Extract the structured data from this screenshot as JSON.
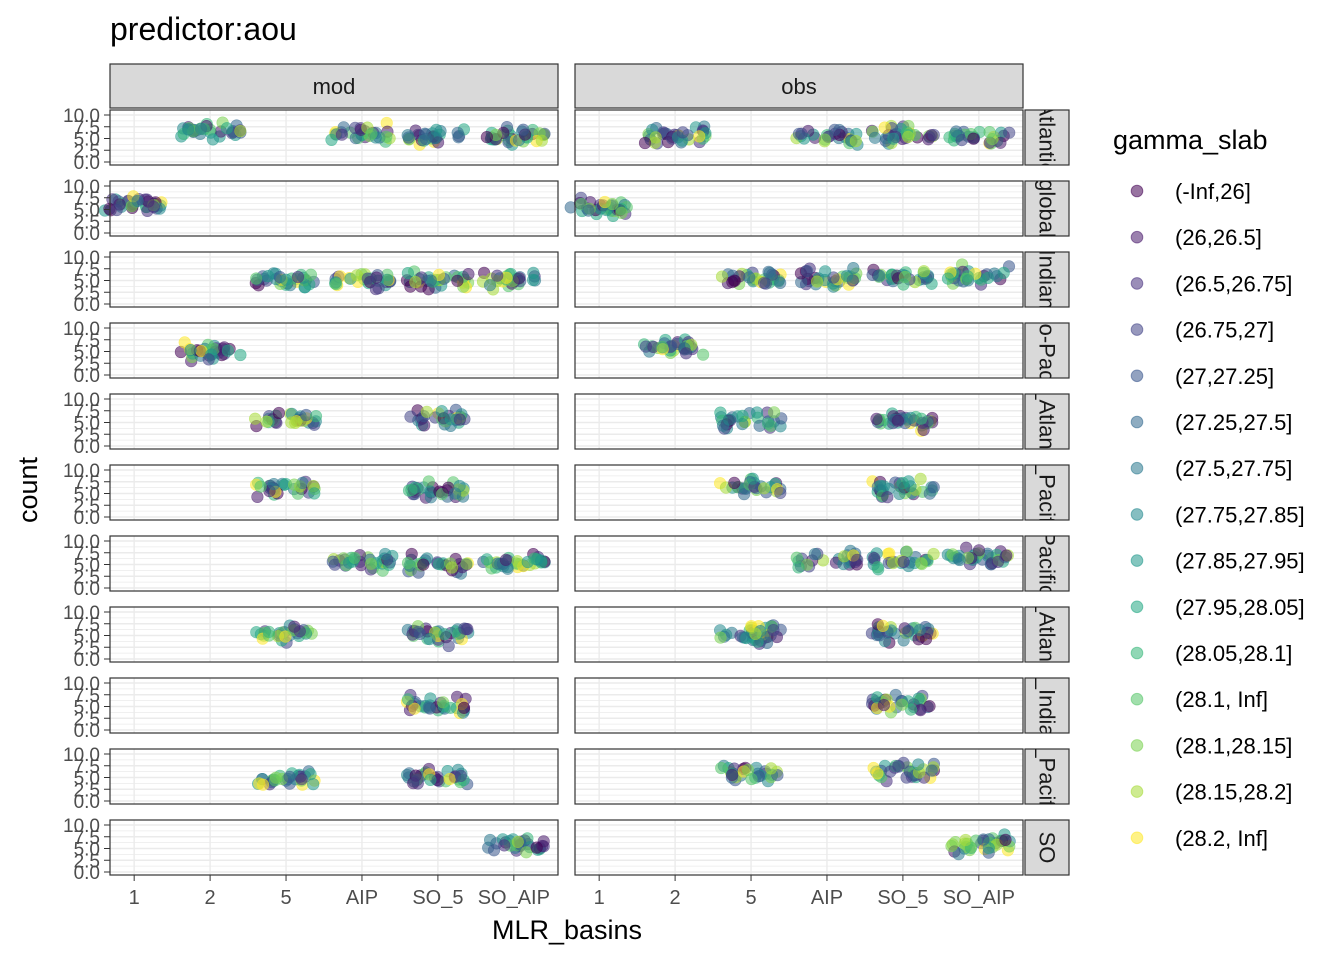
{
  "chart_data": {
    "type": "scatter",
    "title": "predictor:aou",
    "xlabel": "MLR_basins",
    "ylabel": "count",
    "x_categories": [
      "1",
      "2",
      "5",
      "AIP",
      "SO_5",
      "SO_AIP"
    ],
    "y_ticks": [
      "0.0",
      "2.5",
      "5.0",
      "7.5",
      "10.0"
    ],
    "ylim": [
      0,
      10
    ],
    "facet_columns": [
      "mod",
      "obs"
    ],
    "facet_rows": [
      "Atlantic",
      "global",
      "Indian",
      "Indo-Pacific",
      "N_Atlantic",
      "N_Pacific",
      "Pacific",
      "S_Atlantic",
      "S_Indian",
      "S_Pacific",
      "SO"
    ],
    "grid": true,
    "legend": {
      "title": "gamma_slab",
      "placement": "right",
      "entries": [
        "(-Inf,26]",
        "(26,26.5]",
        "(26.5,26.75]",
        "(26.75,27]",
        "(27,27.25]",
        "(27.25,27.5]",
        "(27.5,27.75]",
        "(27.75,27.85]",
        "(27.85,27.95]",
        "(27.95,28.05]",
        "(28.05,28.1]",
        "(28.1, Inf]",
        "(28.1,28.15]",
        "(28.15,28.2]",
        "(28.2, Inf]"
      ],
      "colors": [
        "#440154",
        "#481A6C",
        "#472F7D",
        "#414487",
        "#39568C",
        "#31688E",
        "#2A788E",
        "#23888E",
        "#1F988B",
        "#22A884",
        "#35B779",
        "#54C568",
        "#7AD151",
        "#A5DB36",
        "#FDE725"
      ]
    },
    "panels_present": {
      "mod": [
        [
          2,
          4,
          5,
          6
        ],
        [
          1
        ],
        [
          3,
          4,
          5,
          6
        ],
        [
          2
        ],
        [
          3,
          5
        ],
        [
          3,
          5
        ],
        [
          4,
          5,
          6
        ],
        [
          3,
          5
        ],
        [
          5
        ],
        [
          3,
          5
        ],
        [
          6
        ]
      ],
      "obs": [
        [
          2,
          4,
          5,
          6
        ],
        [
          1
        ],
        [
          3,
          4,
          5,
          6
        ],
        [
          2
        ],
        [
          3,
          5
        ],
        [
          3,
          5
        ],
        [
          4,
          5,
          6
        ],
        [
          3,
          5
        ],
        [
          5
        ],
        [
          3,
          5
        ],
        [
          6
        ]
      ]
    },
    "cluster_center": {
      "mod": [
        [
          6.5,
          6.0,
          5.5,
          5.5
        ],
        [
          6.0
        ],
        [
          5.0,
          5.0,
          5.0,
          5.0
        ],
        [
          5.0
        ],
        [
          5.5,
          6.0
        ],
        [
          6.0,
          5.5
        ],
        [
          5.5,
          5.0,
          5.5
        ],
        [
          5.5,
          5.0
        ],
        [
          5.5
        ],
        [
          4.5,
          5.0
        ],
        [
          5.5
        ]
      ],
      "obs": [
        [
          5.5,
          5.5,
          6.0,
          5.5
        ],
        [
          5.5
        ],
        [
          5.5,
          5.5,
          5.5,
          6.0
        ],
        [
          6.0
        ],
        [
          5.5,
          5.5
        ],
        [
          6.5,
          6.0
        ],
        [
          6.0,
          6.0,
          6.5
        ],
        [
          5.5,
          5.5
        ],
        [
          5.5
        ],
        [
          6.0,
          6.0
        ],
        [
          6.0
        ]
      ]
    }
  }
}
